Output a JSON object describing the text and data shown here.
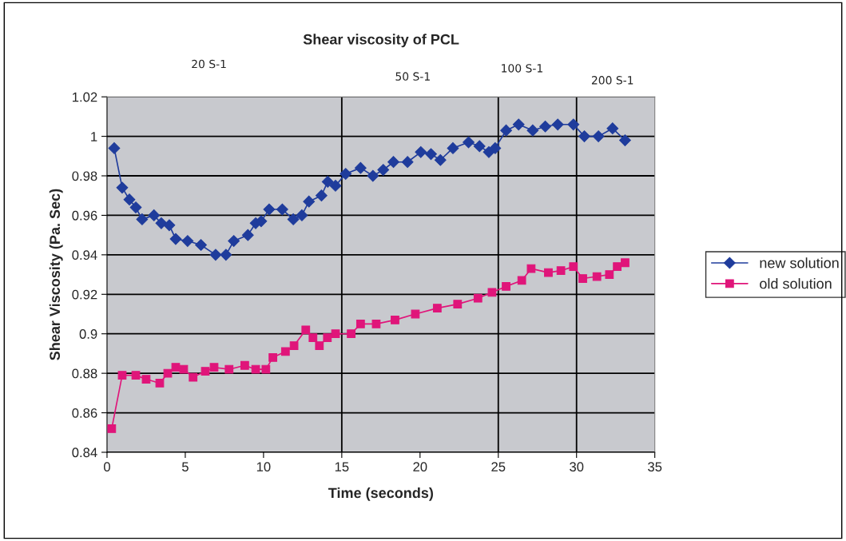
{
  "chart_data": {
    "type": "line",
    "title": "Shear viscosity of PCL",
    "xlabel": "Time (seconds)",
    "ylabel": "Shear Viscosity (Pa. Sec)",
    "xlim": [
      0,
      35
    ],
    "xticks": [
      0,
      5,
      10,
      15,
      20,
      25,
      30,
      35
    ],
    "ylim": [
      0.84,
      1.02
    ],
    "yticks": [
      0.84,
      0.86,
      0.88,
      0.9,
      0.92,
      0.94,
      0.96,
      0.98,
      1,
      1.02
    ],
    "grid": "y",
    "legend": "right",
    "line_style": "solid",
    "ref_lines": [
      {
        "axis": "x",
        "value": 15,
        "color": "#000000"
      },
      {
        "axis": "x",
        "value": 25,
        "color": "#000000"
      },
      {
        "axis": "x",
        "value": 30,
        "color": "#000000"
      }
    ],
    "annotations": [
      "20 S-1",
      "50 S-1",
      "100 S-1",
      "200 S-1"
    ],
    "series": [
      {
        "name": "new solution",
        "color": "#1f3c9c",
        "marker": "diamond",
        "x": [
          0.46,
          0.97,
          1.43,
          1.84,
          2.24,
          3.0,
          3.47,
          3.98,
          4.39,
          5.15,
          6.0,
          6.94,
          7.6,
          8.1,
          9.0,
          9.5,
          9.85,
          10.36,
          11.2,
          11.9,
          12.45,
          12.9,
          13.7,
          14.1,
          14.6,
          15.25,
          16.2,
          16.99,
          17.65,
          18.3,
          19.2,
          20.05,
          20.7,
          21.3,
          22.1,
          23.1,
          23.8,
          24.4,
          24.8,
          25.5,
          26.3,
          27.2,
          28.0,
          28.8,
          29.8,
          30.5,
          31.4,
          32.3,
          33.1
        ],
        "values": [
          0.994,
          0.974,
          0.968,
          0.964,
          0.958,
          0.96,
          0.956,
          0.955,
          0.948,
          0.947,
          0.945,
          0.94,
          0.94,
          0.947,
          0.95,
          0.956,
          0.957,
          0.963,
          0.963,
          0.958,
          0.96,
          0.967,
          0.97,
          0.977,
          0.975,
          0.981,
          0.984,
          0.98,
          0.983,
          0.987,
          0.987,
          0.992,
          0.991,
          0.988,
          0.994,
          0.997,
          0.995,
          0.992,
          0.994,
          1.003,
          1.006,
          1.003,
          1.005,
          1.006,
          1.006,
          1.0,
          1.0,
          1.004,
          0.998
        ]
      },
      {
        "name": "old solution",
        "color": "#e0157a",
        "marker": "square",
        "x": [
          0.3,
          0.97,
          1.84,
          2.5,
          3.37,
          3.88,
          4.39,
          4.9,
          5.5,
          6.28,
          6.84,
          7.8,
          8.8,
          9.5,
          10.15,
          10.6,
          11.4,
          11.95,
          12.7,
          13.16,
          13.57,
          14.08,
          14.6,
          15.6,
          16.2,
          17.2,
          18.4,
          19.7,
          21.1,
          22.4,
          23.7,
          24.6,
          25.5,
          26.5,
          27.1,
          28.2,
          29.0,
          29.8,
          30.4,
          31.3,
          32.1,
          32.6,
          33.1
        ],
        "values": [
          0.852,
          0.879,
          0.879,
          0.877,
          0.875,
          0.88,
          0.883,
          0.882,
          0.878,
          0.881,
          0.883,
          0.882,
          0.884,
          0.882,
          0.882,
          0.888,
          0.891,
          0.894,
          0.902,
          0.898,
          0.894,
          0.898,
          0.9,
          0.9,
          0.905,
          0.905,
          0.907,
          0.91,
          0.913,
          0.915,
          0.918,
          0.921,
          0.924,
          0.927,
          0.933,
          0.931,
          0.932,
          0.934,
          0.928,
          0.929,
          0.93,
          0.934,
          0.936
        ]
      }
    ]
  }
}
